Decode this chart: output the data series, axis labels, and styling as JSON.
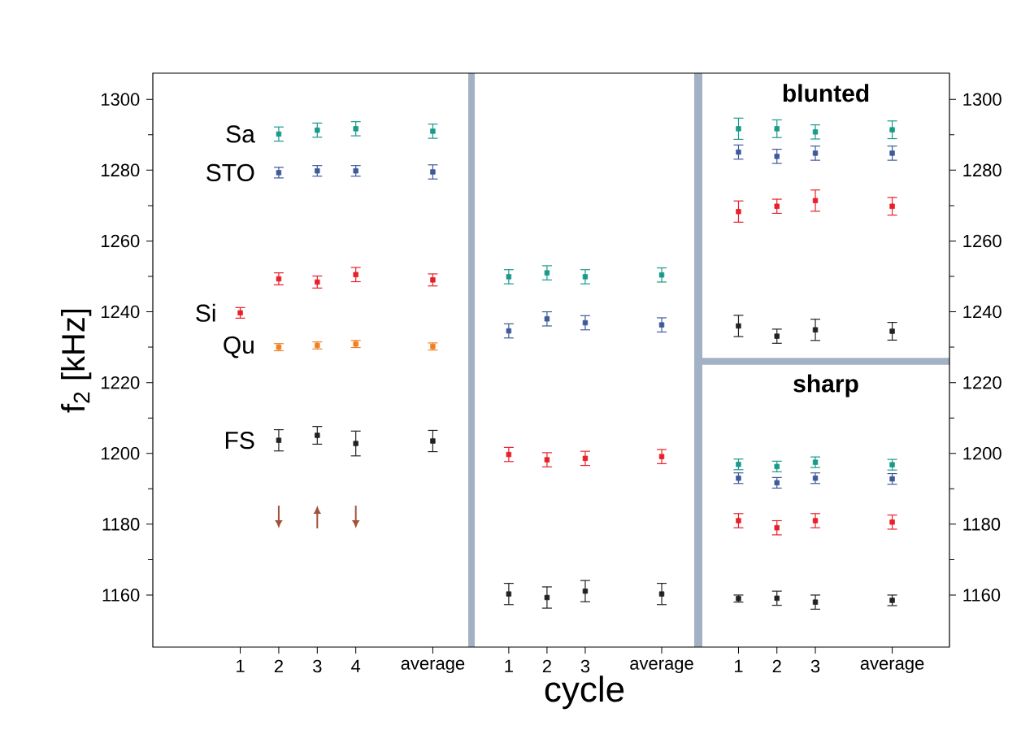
{
  "chart_data": [
    {
      "type": "scatter",
      "marker": "square",
      "ylabel": "f$_{2}$ [kHz]",
      "categories": [
        "1",
        "2",
        "3",
        "4",
        null,
        "average"
      ],
      "ylim": [
        1145.3,
        1307.4
      ],
      "yticks": [
        1160,
        1180,
        1200,
        1220,
        1240,
        1260,
        1280,
        1300
      ],
      "tick_labels": "xy",
      "series": [
        {
          "name": "Sa",
          "color": "#1a9a8a",
          "values": [
            null,
            1290.2,
            1291.3,
            1291.7,
            null,
            1291.0
          ],
          "errors": [
            null,
            2,
            2,
            2,
            null,
            2
          ]
        },
        {
          "name": "STO",
          "color": "#3f5a9a",
          "values": [
            null,
            1279.3,
            1279.8,
            1279.8,
            null,
            1279.5
          ],
          "errors": [
            null,
            1.5,
            1.5,
            1.5,
            null,
            2
          ]
        },
        {
          "name": "Si",
          "color": "#e8202a",
          "values": [
            1239.7,
            1249.3,
            1248.4,
            1250.5,
            null,
            1249.0
          ],
          "errors": [
            1.5,
            1.7,
            1.7,
            2,
            null,
            1.7
          ]
        },
        {
          "name": "Qu",
          "color": "#f08020",
          "values": [
            null,
            1230.0,
            1230.5,
            1230.9,
            null,
            1230.2
          ],
          "errors": [
            null,
            1,
            1,
            1,
            null,
            1
          ]
        },
        {
          "name": "FS",
          "color": "#222222",
          "values": [
            null,
            1203.7,
            1205.1,
            1202.8,
            null,
            1203.5
          ],
          "errors": [
            null,
            3,
            2.5,
            3.5,
            null,
            3
          ]
        }
      ]
    },
    {
      "type": "scatter",
      "marker": "square",
      "xlabel": "cycle",
      "categories": [
        "1",
        "2",
        "3",
        null,
        "average"
      ],
      "ylim": [
        1145.3,
        1307.4
      ],
      "tick_labels": "x",
      "series": [
        {
          "color": "#1a9a8a",
          "values": [
            1249.9,
            1251.0,
            1249.9,
            null,
            1250.4
          ],
          "errors": [
            2,
            2,
            2,
            null,
            2
          ]
        },
        {
          "color": "#3f5a9a",
          "values": [
            1234.6,
            1238.0,
            1236.9,
            null,
            1236.3
          ],
          "errors": [
            2,
            2,
            2,
            null,
            2
          ]
        },
        {
          "color": "#e8202a",
          "values": [
            1199.7,
            1198.2,
            1198.6,
            null,
            1199.1
          ],
          "errors": [
            2,
            2,
            2,
            null,
            2
          ]
        },
        {
          "color": "#222222",
          "values": [
            1160.3,
            1159.3,
            1161.1,
            null,
            1160.3
          ],
          "errors": [
            3,
            3,
            3,
            null,
            3
          ]
        }
      ]
    },
    {
      "type": "scatter",
      "marker": "square",
      "title": "blunted",
      "annotations": [
        "sharp"
      ],
      "categories": [
        "1",
        "2",
        "3",
        null,
        "average"
      ],
      "ylim": [
        1145.3,
        1307.4
      ],
      "yticks": [
        1160,
        1180,
        1200,
        1220,
        1240,
        1260,
        1280,
        1300
      ],
      "tick_labels": "xy",
      "bands": [
        {
          "axis": "y",
          "from": 1225,
          "to": 1227,
          "color": "#a3b1c4"
        }
      ],
      "series": [
        {
          "color": "#1a9a8a",
          "values": [
            1291.7,
            1291.7,
            1290.8,
            null,
            1291.4
          ],
          "errors": [
            3,
            2.5,
            2,
            null,
            2.5
          ]
        },
        {
          "color": "#3f5a9a",
          "values": [
            1285.1,
            1283.9,
            1284.8,
            null,
            1284.8
          ],
          "errors": [
            2,
            2,
            2,
            null,
            2
          ]
        },
        {
          "color": "#e8202a",
          "values": [
            1268.3,
            1269.8,
            1271.4,
            null,
            1269.8
          ],
          "errors": [
            3,
            2,
            3,
            null,
            2.5
          ]
        },
        {
          "color": "#222222",
          "values": [
            1236.0,
            1233.1,
            1234.9,
            null,
            1234.5
          ],
          "errors": [
            3,
            2,
            3,
            null,
            2.5
          ]
        },
        {
          "color": "#1a9a8a",
          "values": [
            1196.9,
            1196.3,
            1197.5,
            null,
            1196.8
          ],
          "errors": [
            1.5,
            1.5,
            1.5,
            null,
            1.5
          ]
        },
        {
          "color": "#3f5a9a",
          "values": [
            1193.0,
            1191.7,
            1193.0,
            null,
            1192.8
          ],
          "errors": [
            1.5,
            1.5,
            1.5,
            null,
            1.5
          ]
        },
        {
          "color": "#e8202a",
          "values": [
            1181.0,
            1179.0,
            1181.0,
            null,
            1180.6
          ],
          "errors": [
            2,
            2,
            2,
            null,
            2
          ]
        },
        {
          "color": "#222222",
          "values": [
            1159.0,
            1159.1,
            1158.0,
            null,
            1158.5
          ],
          "errors": [
            1,
            2,
            2,
            null,
            1.5
          ]
        }
      ]
    }
  ]
}
